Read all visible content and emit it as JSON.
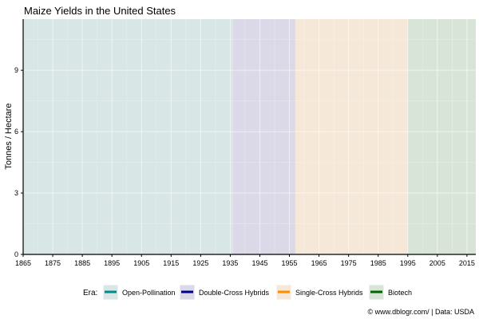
{
  "chart_data": {
    "type": "area",
    "title": "Maize Yields in the United States",
    "xlabel": "",
    "ylabel": "Tonnes / Hectare",
    "xlim": [
      1865,
      2018
    ],
    "ylim": [
      0,
      11.5
    ],
    "x_ticks": [
      1865,
      1875,
      1885,
      1895,
      1905,
      1915,
      1925,
      1935,
      1945,
      1955,
      1965,
      1975,
      1985,
      1995,
      2005,
      2015
    ],
    "y_ticks": [
      0,
      3,
      6,
      9
    ],
    "grid": true,
    "legend": {
      "title": "Era:",
      "placement": "bottom",
      "entries": [
        {
          "name": "Open-Pollination",
          "color": "#008b8b"
        },
        {
          "name": "Double-Cross Hybrids",
          "color": "#00008b"
        },
        {
          "name": "Single-Cross Hybrids",
          "color": "#ff8c00"
        },
        {
          "name": "Biotech",
          "color": "#006400"
        }
      ]
    },
    "eras": [
      {
        "name": "Open-Pollination",
        "start": 1865,
        "end": 1936,
        "fill": "#d9e6e6"
      },
      {
        "name": "Double-Cross Hybrids",
        "start": 1936,
        "end": 1957,
        "fill": "#dbd9e8"
      },
      {
        "name": "Single-Cross Hybrids",
        "start": 1957,
        "end": 1995,
        "fill": "#f5e8d9"
      },
      {
        "name": "Biotech",
        "start": 1995,
        "end": 2018,
        "fill": "#d9e4d9"
      }
    ],
    "series": [],
    "caption": "© www.dblogr.com/  |  Data: USDA"
  }
}
